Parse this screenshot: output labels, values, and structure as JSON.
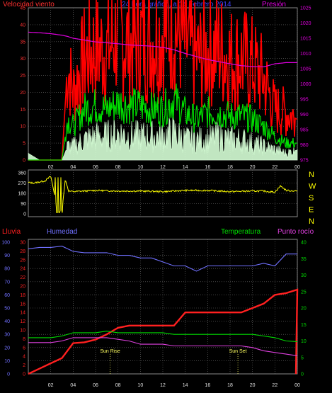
{
  "colors": {
    "wind_gust": "#ff0000",
    "wind_avg": "#00e000",
    "wind_low": "#d6ffd6",
    "pressure": "#e000e0",
    "direction": "#ffff00",
    "rain": "#ff2020",
    "humidity": "#7070ff",
    "temperature": "#00dd00",
    "dew_point": "#e040e0",
    "grid": "#707070",
    "axis_left": "#ff3030",
    "axis_right": "#e000e0",
    "dir_axis": "#e0e0e0",
    "dir_letters": "#ffff00",
    "sun_marker": "#ffff60"
  },
  "x_ticks": [
    "02",
    "04",
    "06",
    "08",
    "10",
    "12",
    "14",
    "16",
    "18",
    "20",
    "22",
    "00"
  ],
  "panel1": {
    "title_left": "Velocidad viento",
    "title_center": "24 hora gráfico, a 14 Febrero 2014",
    "title_right": "Presión",
    "left_ticks": [
      "45",
      "40",
      "35",
      "30",
      "25",
      "20",
      "15",
      "10",
      "5",
      "0"
    ],
    "right_ticks": [
      "1025",
      "1020",
      "1015",
      "1010",
      "1005",
      "1000",
      "995",
      "990",
      "985",
      "980",
      "975"
    ]
  },
  "panel2": {
    "left_ticks": [
      "360",
      "270",
      "180",
      "90",
      "0"
    ],
    "compass": [
      "N",
      "W",
      "S",
      "E",
      "N"
    ]
  },
  "panel3": {
    "title_rain": "Lluvia",
    "title_humidity": "Humedad",
    "title_temperature": "Temperatura",
    "title_dewpoint": "Punto rocío",
    "humidity_ticks": [
      "100",
      "90",
      "80",
      "70",
      "60",
      "50",
      "40",
      "30",
      "20",
      "10",
      "0"
    ],
    "rain_ticks": [
      "30",
      "28",
      "26",
      "24",
      "22",
      "20",
      "18",
      "16",
      "14",
      "12",
      "10",
      "8",
      "6",
      "4",
      "2",
      "0"
    ],
    "temp_ticks": [
      "40",
      "35",
      "30",
      "25",
      "20",
      "15",
      "10",
      "5",
      "0"
    ],
    "sun_rise": "Sun Rise",
    "sun_set": "Sun Set"
  },
  "chart_data": [
    {
      "type": "line",
      "title": "24 hora gráfico, a 14 Febrero 2014",
      "ylabel": "Velocidad viento",
      "y2label": "Presión",
      "ylim": [
        0,
        45
      ],
      "y2lim": [
        975,
        1025
      ],
      "x_hours": [
        0,
        1,
        2,
        3,
        3.5,
        4,
        5,
        6,
        7,
        8,
        9,
        10,
        11,
        12,
        13,
        14,
        15,
        16,
        17,
        18,
        19,
        20,
        21,
        22,
        23,
        24
      ],
      "series": [
        {
          "name": "",
          "color_key": "wind_gust",
          "values": [
            0,
            0,
            0,
            0,
            28,
            20,
            30,
            33,
            32,
            38,
            34,
            36,
            35,
            38,
            40,
            34,
            30,
            32,
            33,
            30,
            30,
            28,
            24,
            15,
            14,
            12
          ]
        },
        {
          "name": "",
          "color_key": "wind_avg",
          "values": [
            0,
            0,
            0,
            0,
            12,
            10,
            15,
            16,
            15,
            17,
            16,
            16,
            15,
            15,
            18,
            14,
            12,
            14,
            14,
            13,
            13,
            12,
            10,
            7,
            5,
            5
          ]
        },
        {
          "name": "",
          "color_key": "wind_low",
          "values": [
            2,
            0,
            0,
            0,
            4,
            4,
            6,
            7,
            7,
            8,
            7,
            7,
            7,
            7,
            8,
            6,
            6,
            6,
            7,
            6,
            6,
            5,
            4,
            3,
            2,
            3
          ]
        },
        {
          "name": "Presión",
          "color_key": "pressure",
          "axis": "right",
          "values": [
            1017,
            1016.8,
            1016.5,
            1016,
            1015.6,
            1015,
            1014.4,
            1013.8,
            1013.5,
            1013.2,
            1012.8,
            1012.6,
            1012.4,
            1012,
            1011.2,
            1010,
            1009,
            1008,
            1007.3,
            1006.6,
            1006,
            1005.7,
            1005.6,
            1006.6,
            1007,
            1007
          ]
        }
      ]
    },
    {
      "type": "line",
      "ylim": [
        0,
        360
      ],
      "x_hours": [
        0,
        0.5,
        1,
        1.5,
        2,
        2.4,
        2.6,
        3,
        3.3,
        3.6,
        4,
        6,
        8,
        10,
        12,
        14,
        16,
        18,
        20,
        21,
        22,
        22.5,
        23,
        24
      ],
      "series": [
        {
          "name": "",
          "color_key": "direction",
          "values": [
            275,
            270,
            280,
            290,
            330,
            140,
            10,
            40,
            300,
            200,
            195,
            205,
            200,
            200,
            195,
            205,
            205,
            195,
            200,
            200,
            190,
            245,
            205,
            200
          ]
        }
      ]
    },
    {
      "type": "line",
      "xlabel_markers": [
        "Sun Rise",
        "Sun Set"
      ],
      "x_hours": [
        0,
        1,
        2,
        3,
        4,
        5,
        6,
        7,
        8,
        9,
        10,
        11,
        12,
        13,
        14,
        15,
        16,
        17,
        18,
        19,
        20,
        21,
        22,
        23,
        24
      ],
      "series": [
        {
          "name": "Lluvia",
          "color_key": "rain",
          "axis": "rain",
          "ylim": [
            0,
            30
          ],
          "values": [
            0,
            1.2,
            2.4,
            3.6,
            7,
            7.2,
            7.8,
            9,
            10.5,
            11,
            11,
            11,
            11,
            11,
            14,
            14,
            14,
            14,
            14,
            14,
            15,
            16,
            18,
            18.4,
            19.2
          ]
        },
        {
          "name": "Humedad",
          "color_key": "humidity",
          "axis": "humidity",
          "ylim": [
            0,
            100
          ],
          "values": [
            95,
            96,
            96,
            97,
            93,
            92,
            92,
            92,
            90,
            90,
            88,
            88,
            85,
            82,
            82,
            78,
            82,
            82,
            82,
            82,
            82,
            84,
            82,
            91,
            91
          ]
        },
        {
          "name": "Temperatura",
          "color_key": "temperature",
          "axis": "temp",
          "ylim": [
            0,
            40
          ],
          "values": [
            11,
            11,
            11,
            11.5,
            12.5,
            12.5,
            12.5,
            13,
            12.5,
            12.5,
            12.5,
            12.5,
            12.5,
            12,
            12,
            12,
            12,
            12,
            12,
            12,
            12,
            11.5,
            11,
            10,
            9.8
          ]
        },
        {
          "name": "Punto rocío",
          "color_key": "dew_point",
          "axis": "temp",
          "ylim": [
            0,
            40
          ],
          "values": [
            9.5,
            9.5,
            9.5,
            10,
            11,
            11,
            11,
            11,
            10.5,
            10,
            9,
            9,
            9,
            8.5,
            8.5,
            8.5,
            8.5,
            8.5,
            8.5,
            8.5,
            8,
            7,
            6.5,
            6,
            5.5
          ]
        }
      ]
    }
  ]
}
